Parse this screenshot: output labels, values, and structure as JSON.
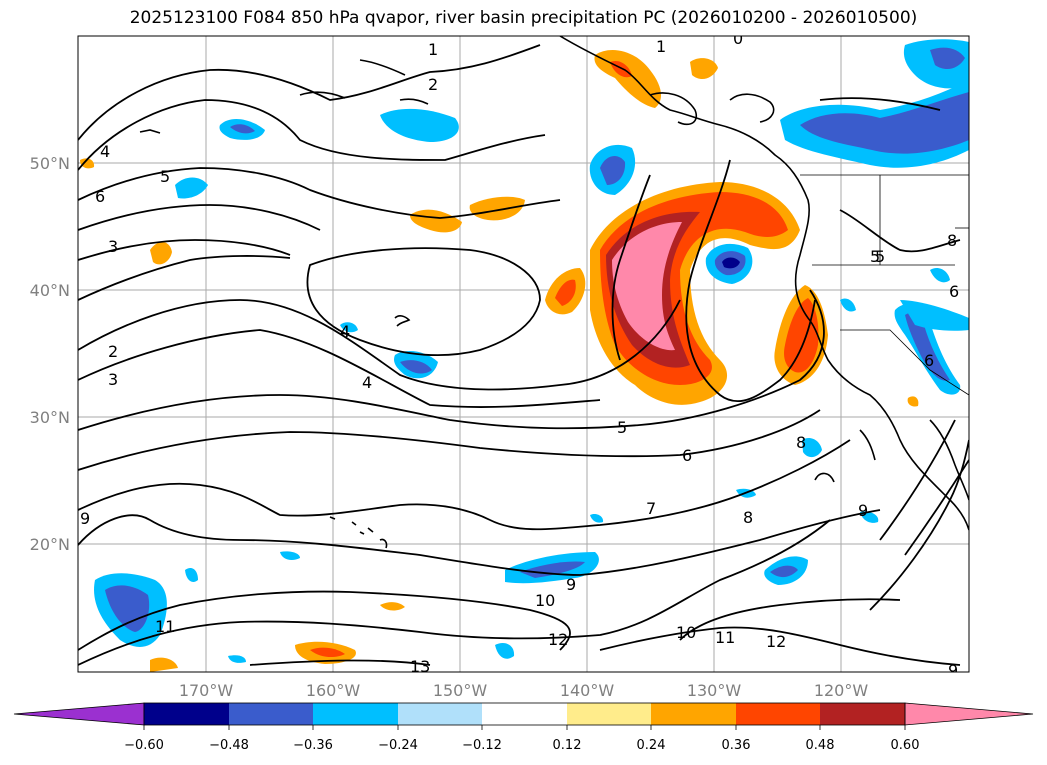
{
  "title": "2025123100 F084 850 hPa qvapor, river basin precipitation PC (2026010200 - 2026010500)",
  "map": {
    "lat_labels": [
      "50°N",
      "40°N",
      "30°N",
      "20°N"
    ],
    "lon_labels": [
      "170°W",
      "160°W",
      "150°W",
      "140°W",
      "130°W",
      "120°W"
    ],
    "contour_labels": [
      "1",
      "2",
      "4",
      "5",
      "6",
      "3",
      "5",
      "4",
      "2",
      "3",
      "4",
      "5",
      "6",
      "7",
      "8",
      "8",
      "9",
      "9",
      "10",
      "9",
      "11",
      "12",
      "10",
      "11",
      "12",
      "13",
      "5",
      "6",
      "6",
      "0",
      "1",
      "8",
      "9"
    ]
  },
  "colorbar": {
    "ticks": [
      "−0.60",
      "−0.48",
      "−0.36",
      "−0.24",
      "−0.12",
      "0.12",
      "0.24",
      "0.36",
      "0.48",
      "0.60"
    ],
    "colors": [
      "#9b30d0",
      "#00008b",
      "#3a5ccc",
      "#00bfff",
      "#b0e0fa",
      "#ffffff",
      "#ffec8b",
      "#ffa500",
      "#ff4500",
      "#b22222",
      "#ff88aa"
    ]
  }
}
